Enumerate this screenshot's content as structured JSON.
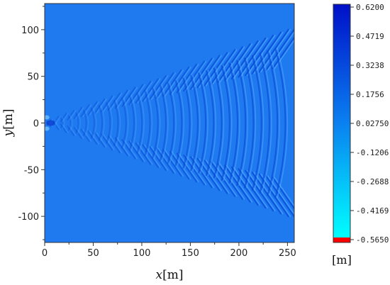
{
  "chart_data": {
    "type": "heatmap",
    "description_of_field": "ship wake wave elevation",
    "x": {
      "label_var": "x",
      "label_unit": "[m]",
      "range": [
        0,
        257
      ],
      "ticks": [
        0,
        50,
        100,
        150,
        200,
        250
      ]
    },
    "y": {
      "label_var": "y",
      "label_unit": "[m]",
      "range": [
        -128,
        128
      ],
      "ticks": [
        -100,
        -50,
        0,
        50,
        100
      ]
    },
    "colorbar": {
      "unit": "[m]",
      "ticks": [
        "0.6200",
        "0.4719",
        "0.3238",
        "0.1756",
        "0.02750",
        "-0.1206",
        "-0.2688",
        "-0.4169",
        "-0.5650"
      ],
      "min": -0.565,
      "max": 0.62,
      "colors": [
        "#00ffff",
        "#0080ff",
        "#0000cc"
      ],
      "underflow_color": "#ff0000"
    },
    "wake": {
      "kelvin_half_angle_deg": 19.47,
      "dominant_value": 0.0275
    }
  }
}
